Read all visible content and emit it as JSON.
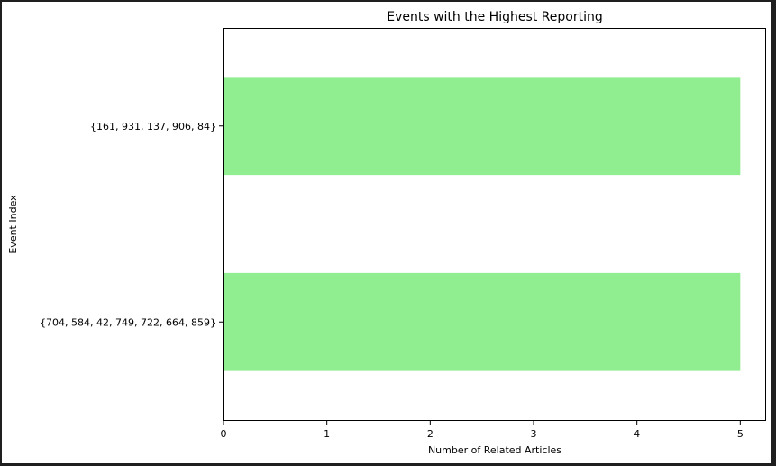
{
  "chart_data": {
    "type": "bar",
    "orientation": "horizontal",
    "title": "Events with the Highest Reporting",
    "xlabel": "Number of Related Articles",
    "ylabel": "Event Index",
    "categories": [
      "{704, 584, 42, 749, 722, 664, 859}",
      "{161, 931, 137, 906, 84}"
    ],
    "values": [
      5,
      5
    ],
    "xticks": [
      "0",
      "1",
      "2",
      "3",
      "4",
      "5"
    ],
    "xlim": [
      0,
      5.25
    ],
    "bar_color": "#90ee90",
    "grid": false,
    "legend": "none"
  }
}
